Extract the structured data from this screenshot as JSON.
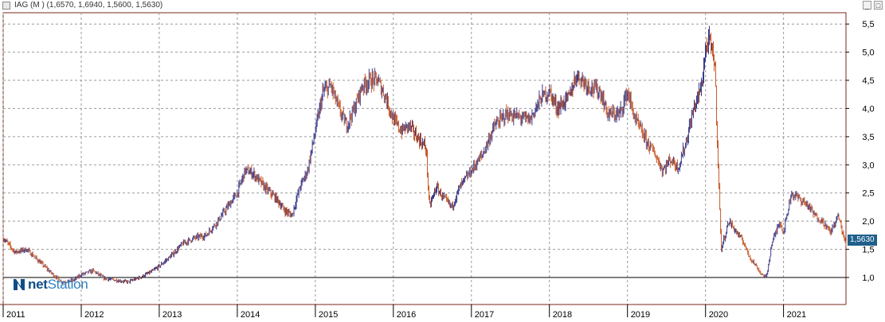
{
  "window": {
    "title": "IAG (M ) (1,6570, 1,6940, 1,5600, 1,5630)",
    "buttons": [
      "_",
      "□"
    ]
  },
  "logo": {
    "text_bold": "net",
    "text_rest": "Station"
  },
  "last_price_label": "1,5630",
  "colors": {
    "frame": "#7a2a1a",
    "up": "#3a3a8a",
    "down": "#c85a2a",
    "grid": "#9a9a9a",
    "baseline": "#000000",
    "badge": "#1f5f8b"
  },
  "chart_data": {
    "type": "line",
    "title": "IAG (M ) (1,6570, 1,6940, 1,5600, 1,5630)",
    "xlabel": "",
    "ylabel": "",
    "grid": true,
    "ohlc_last": {
      "open": 1.657,
      "high": 1.694,
      "low": 1.56,
      "close": 1.563
    },
    "x_ticks": [
      "2011",
      "2012",
      "2013",
      "2014",
      "2015",
      "2016",
      "2017",
      "2018",
      "2019",
      "2020",
      "2021"
    ],
    "y_ticks": [
      "1,0",
      "1,5",
      "2,0",
      "2,5",
      "3,0",
      "3,5",
      "4,0",
      "4,5",
      "5,0",
      "5,5"
    ],
    "y_tick_values": [
      1.0,
      1.5,
      2.0,
      2.5,
      3.0,
      3.5,
      4.0,
      4.5,
      5.0,
      5.5
    ],
    "ylim": [
      0.52,
      5.7
    ],
    "xlim": [
      2011.0,
      2021.8
    ],
    "reference_line": 1.0,
    "series": [
      {
        "values": [
          [
            2011.0,
            1.7
          ],
          [
            2011.15,
            1.45
          ],
          [
            2011.3,
            1.5
          ],
          [
            2011.45,
            1.3
          ],
          [
            2011.6,
            1.1
          ],
          [
            2011.75,
            0.92
          ],
          [
            2011.9,
            0.95
          ],
          [
            2012.0,
            1.05
          ],
          [
            2012.15,
            1.12
          ],
          [
            2012.3,
            0.98
          ],
          [
            2012.45,
            0.95
          ],
          [
            2012.6,
            0.92
          ],
          [
            2012.75,
            1.0
          ],
          [
            2012.9,
            1.1
          ],
          [
            2013.0,
            1.2
          ],
          [
            2013.15,
            1.38
          ],
          [
            2013.3,
            1.6
          ],
          [
            2013.45,
            1.7
          ],
          [
            2013.6,
            1.75
          ],
          [
            2013.75,
            2.0
          ],
          [
            2013.9,
            2.3
          ],
          [
            2014.0,
            2.5
          ],
          [
            2014.1,
            2.9
          ],
          [
            2014.2,
            2.85
          ],
          [
            2014.35,
            2.6
          ],
          [
            2014.5,
            2.4
          ],
          [
            2014.6,
            2.2
          ],
          [
            2014.7,
            2.1
          ],
          [
            2014.8,
            2.6
          ],
          [
            2014.9,
            2.9
          ],
          [
            2015.0,
            3.6
          ],
          [
            2015.1,
            4.3
          ],
          [
            2015.2,
            4.4
          ],
          [
            2015.3,
            4.0
          ],
          [
            2015.4,
            3.7
          ],
          [
            2015.5,
            4.0
          ],
          [
            2015.6,
            4.4
          ],
          [
            2015.7,
            4.5
          ],
          [
            2015.8,
            4.5
          ],
          [
            2015.9,
            4.2
          ],
          [
            2016.0,
            3.8
          ],
          [
            2016.1,
            3.6
          ],
          [
            2016.2,
            3.7
          ],
          [
            2016.3,
            3.5
          ],
          [
            2016.42,
            3.3
          ],
          [
            2016.46,
            2.25
          ],
          [
            2016.55,
            2.6
          ],
          [
            2016.65,
            2.4
          ],
          [
            2016.75,
            2.25
          ],
          [
            2016.85,
            2.6
          ],
          [
            2016.95,
            2.8
          ],
          [
            2017.0,
            2.9
          ],
          [
            2017.15,
            3.2
          ],
          [
            2017.3,
            3.7
          ],
          [
            2017.45,
            3.9
          ],
          [
            2017.6,
            3.85
          ],
          [
            2017.75,
            3.8
          ],
          [
            2017.9,
            4.2
          ],
          [
            2018.0,
            4.3
          ],
          [
            2018.1,
            4.0
          ],
          [
            2018.25,
            4.2
          ],
          [
            2018.35,
            4.6
          ],
          [
            2018.5,
            4.4
          ],
          [
            2018.65,
            4.3
          ],
          [
            2018.75,
            3.9
          ],
          [
            2018.9,
            3.9
          ],
          [
            2019.0,
            4.3
          ],
          [
            2019.1,
            3.8
          ],
          [
            2019.25,
            3.4
          ],
          [
            2019.35,
            3.2
          ],
          [
            2019.45,
            2.9
          ],
          [
            2019.55,
            3.1
          ],
          [
            2019.65,
            2.95
          ],
          [
            2019.75,
            3.4
          ],
          [
            2019.85,
            4.0
          ],
          [
            2019.95,
            4.4
          ],
          [
            2020.0,
            5.05
          ],
          [
            2020.05,
            5.2
          ],
          [
            2020.12,
            4.8
          ],
          [
            2020.15,
            3.5
          ],
          [
            2020.2,
            1.5
          ],
          [
            2020.3,
            2.0
          ],
          [
            2020.4,
            1.8
          ],
          [
            2020.5,
            1.6
          ],
          [
            2020.55,
            1.4
          ],
          [
            2020.65,
            1.2
          ],
          [
            2020.72,
            1.05
          ],
          [
            2020.78,
            1.0
          ],
          [
            2020.85,
            1.6
          ],
          [
            2020.95,
            2.0
          ],
          [
            2021.0,
            1.8
          ],
          [
            2021.1,
            2.5
          ],
          [
            2021.2,
            2.4
          ],
          [
            2021.3,
            2.3
          ],
          [
            2021.4,
            2.1
          ],
          [
            2021.5,
            2.0
          ],
          [
            2021.6,
            1.8
          ],
          [
            2021.7,
            2.1
          ],
          [
            2021.8,
            1.563
          ]
        ]
      }
    ]
  }
}
